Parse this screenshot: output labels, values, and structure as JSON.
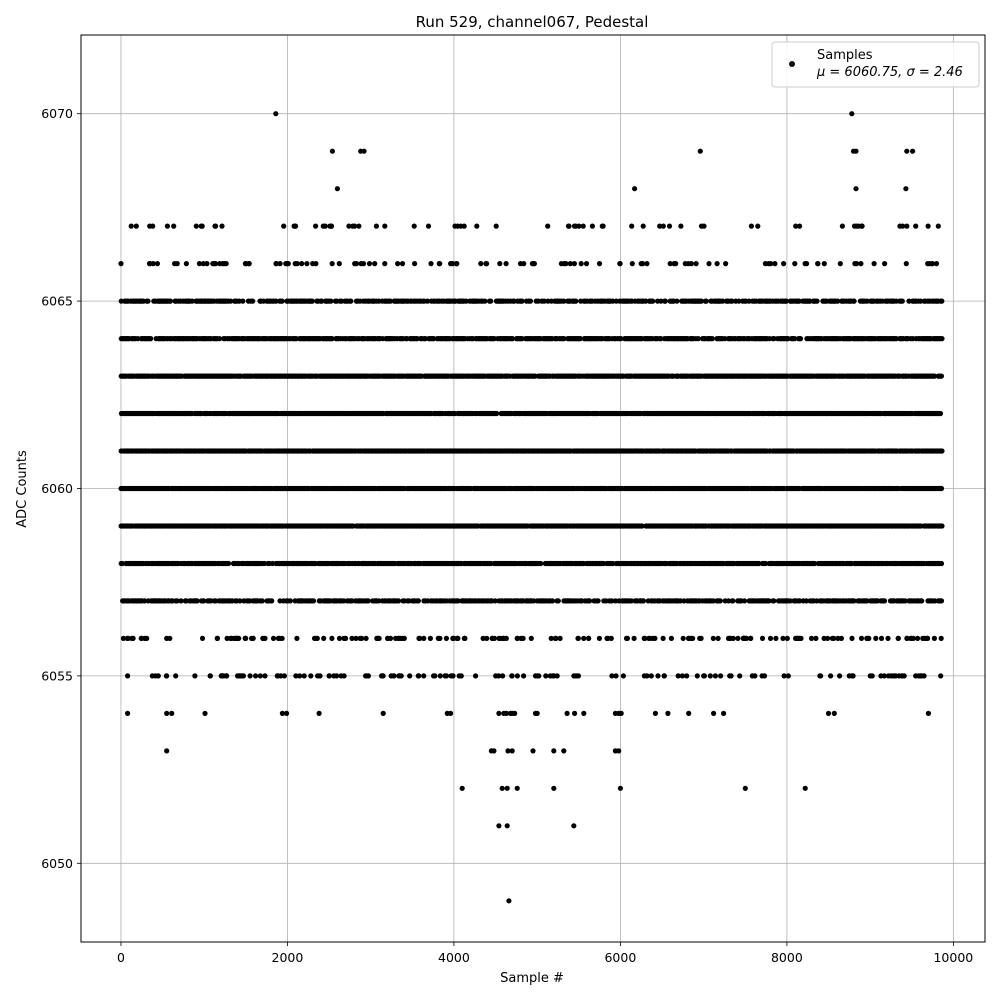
{
  "chart_data": {
    "type": "scatter",
    "title": "Run 529, channel067, Pedestal",
    "xlabel": "Sample #",
    "ylabel": "ADC Counts",
    "xlim": [
      -480,
      10380
    ],
    "ylim": [
      6047.9,
      6072.1
    ],
    "xticks": [
      0,
      2000,
      4000,
      6000,
      8000,
      10000
    ],
    "yticks": [
      6050,
      6055,
      6060,
      6065,
      6070
    ],
    "grid": true,
    "legend": {
      "placement": "top-right",
      "entries": [
        {
          "name": "Samples",
          "stats": "μ = 6060.75, σ = 2.46"
        }
      ]
    },
    "marker_color": "#000000",
    "series": [
      {
        "name": "Samples",
        "n_samples": 9860,
        "x_range": [
          0,
          9859
        ],
        "dense_levels": [
          6057,
          6058,
          6059,
          6060,
          6061,
          6062,
          6063,
          6064,
          6065
        ],
        "frequent_levels": [
          6055,
          6056,
          6066,
          6067
        ],
        "outliers": [
          [
            1860,
            6070
          ],
          [
            2540,
            6069
          ],
          [
            2880,
            6069
          ],
          [
            2920,
            6069
          ],
          [
            2600,
            6068
          ],
          [
            6960,
            6069
          ],
          [
            9440,
            6069
          ],
          [
            9510,
            6069
          ],
          [
            8800,
            6069
          ],
          [
            8830,
            6069
          ],
          [
            8780,
            6070
          ],
          [
            6170,
            6068
          ],
          [
            8830,
            6068
          ],
          [
            9430,
            6068
          ],
          [
            550,
            6053
          ],
          [
            4450,
            6053
          ],
          [
            4480,
            6053
          ],
          [
            4650,
            6053
          ],
          [
            4700,
            6053
          ],
          [
            4950,
            6053
          ],
          [
            5200,
            6053
          ],
          [
            5320,
            6053
          ],
          [
            5940,
            6053
          ],
          [
            5980,
            6053
          ],
          [
            4100,
            6052
          ],
          [
            4580,
            6052
          ],
          [
            4640,
            6052
          ],
          [
            4760,
            6052
          ],
          [
            5200,
            6052
          ],
          [
            6000,
            6052
          ],
          [
            7500,
            6052
          ],
          [
            8220,
            6052
          ],
          [
            4540,
            6051
          ],
          [
            4640,
            6051
          ],
          [
            5440,
            6051
          ],
          [
            4660,
            6049
          ]
        ],
        "sparse_6054": [
          80,
          550,
          610,
          1010,
          1940,
          1990,
          2380,
          3150,
          3920,
          3960,
          4540,
          4600,
          4630,
          4680,
          4700,
          4730,
          4980,
          5000,
          5360,
          5450,
          5560,
          5940,
          5980,
          6010,
          6420,
          6570,
          6820,
          7120,
          7240,
          8500,
          8570,
          9700
        ]
      }
    ]
  }
}
